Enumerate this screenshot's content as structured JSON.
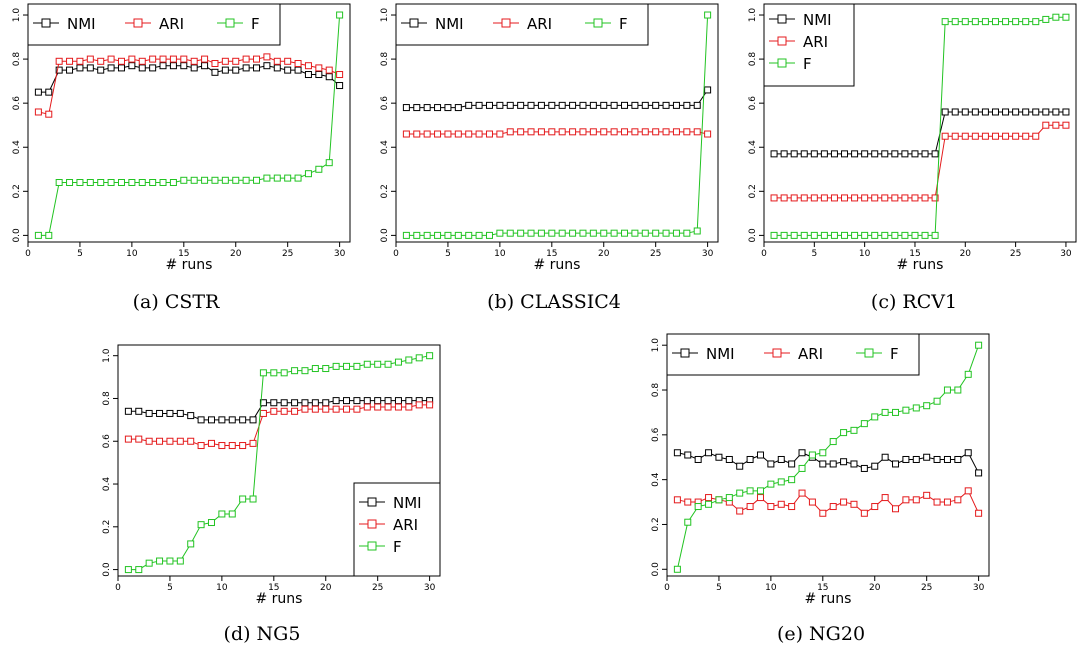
{
  "colors": {
    "NMI": "#000000",
    "ARI": "#e41a1c",
    "F": "#22c322"
  },
  "chart_data": [
    {
      "type": "line",
      "caption": "(a) CSTR",
      "xlabel": "# runs",
      "x": [
        1,
        2,
        3,
        4,
        5,
        6,
        7,
        8,
        9,
        10,
        11,
        12,
        13,
        14,
        15,
        16,
        17,
        18,
        19,
        20,
        21,
        22,
        23,
        24,
        25,
        26,
        27,
        28,
        29,
        30
      ],
      "xlim": [
        0,
        31
      ],
      "ylim": [
        -0.03,
        1.05
      ],
      "xticks": [
        0,
        5,
        10,
        15,
        20,
        25,
        30
      ],
      "yticks": [
        0.0,
        0.2,
        0.4,
        0.6,
        0.8,
        1.0
      ],
      "legend": "top-left-horizontal",
      "series": [
        {
          "name": "NMI",
          "values": [
            0.65,
            0.65,
            0.75,
            0.75,
            0.76,
            0.76,
            0.75,
            0.76,
            0.76,
            0.77,
            0.76,
            0.76,
            0.77,
            0.77,
            0.77,
            0.76,
            0.77,
            0.74,
            0.75,
            0.75,
            0.76,
            0.76,
            0.77,
            0.76,
            0.75,
            0.75,
            0.73,
            0.73,
            0.72,
            0.68
          ]
        },
        {
          "name": "ARI",
          "values": [
            0.56,
            0.55,
            0.79,
            0.79,
            0.79,
            0.8,
            0.79,
            0.8,
            0.79,
            0.8,
            0.79,
            0.8,
            0.8,
            0.8,
            0.8,
            0.79,
            0.8,
            0.78,
            0.79,
            0.79,
            0.8,
            0.8,
            0.81,
            0.79,
            0.79,
            0.78,
            0.77,
            0.76,
            0.75,
            0.73
          ]
        },
        {
          "name": "F",
          "values": [
            0.0,
            0.0,
            0.24,
            0.24,
            0.24,
            0.24,
            0.24,
            0.24,
            0.24,
            0.24,
            0.24,
            0.24,
            0.24,
            0.24,
            0.25,
            0.25,
            0.25,
            0.25,
            0.25,
            0.25,
            0.25,
            0.25,
            0.26,
            0.26,
            0.26,
            0.26,
            0.28,
            0.3,
            0.33,
            1.0
          ]
        }
      ]
    },
    {
      "type": "line",
      "caption": "(b) CLASSIC4",
      "xlabel": "# runs",
      "x": [
        1,
        2,
        3,
        4,
        5,
        6,
        7,
        8,
        9,
        10,
        11,
        12,
        13,
        14,
        15,
        16,
        17,
        18,
        19,
        20,
        21,
        22,
        23,
        24,
        25,
        26,
        27,
        28,
        29,
        30
      ],
      "xlim": [
        0,
        31
      ],
      "ylim": [
        -0.03,
        1.05
      ],
      "xticks": [
        0,
        5,
        10,
        15,
        20,
        25,
        30
      ],
      "yticks": [
        0.0,
        0.2,
        0.4,
        0.6,
        0.8,
        1.0
      ],
      "legend": "top-left-horizontal",
      "series": [
        {
          "name": "NMI",
          "values": [
            0.58,
            0.58,
            0.58,
            0.58,
            0.58,
            0.58,
            0.59,
            0.59,
            0.59,
            0.59,
            0.59,
            0.59,
            0.59,
            0.59,
            0.59,
            0.59,
            0.59,
            0.59,
            0.59,
            0.59,
            0.59,
            0.59,
            0.59,
            0.59,
            0.59,
            0.59,
            0.59,
            0.59,
            0.59,
            0.66
          ]
        },
        {
          "name": "ARI",
          "values": [
            0.46,
            0.46,
            0.46,
            0.46,
            0.46,
            0.46,
            0.46,
            0.46,
            0.46,
            0.46,
            0.47,
            0.47,
            0.47,
            0.47,
            0.47,
            0.47,
            0.47,
            0.47,
            0.47,
            0.47,
            0.47,
            0.47,
            0.47,
            0.47,
            0.47,
            0.47,
            0.47,
            0.47,
            0.47,
            0.46
          ]
        },
        {
          "name": "F",
          "values": [
            0.0,
            0.0,
            0.0,
            0.0,
            0.0,
            0.0,
            0.0,
            0.0,
            0.0,
            0.01,
            0.01,
            0.01,
            0.01,
            0.01,
            0.01,
            0.01,
            0.01,
            0.01,
            0.01,
            0.01,
            0.01,
            0.01,
            0.01,
            0.01,
            0.01,
            0.01,
            0.01,
            0.01,
            0.02,
            1.0
          ]
        }
      ]
    },
    {
      "type": "line",
      "caption": "(c) RCV1",
      "xlabel": "# runs",
      "x": [
        1,
        2,
        3,
        4,
        5,
        6,
        7,
        8,
        9,
        10,
        11,
        12,
        13,
        14,
        15,
        16,
        17,
        18,
        19,
        20,
        21,
        22,
        23,
        24,
        25,
        26,
        27,
        28,
        29,
        30
      ],
      "xlim": [
        0,
        31
      ],
      "ylim": [
        -0.03,
        1.05
      ],
      "xticks": [
        0,
        5,
        10,
        15,
        20,
        25,
        30
      ],
      "yticks": [
        0.0,
        0.2,
        0.4,
        0.6,
        0.8,
        1.0
      ],
      "legend": "top-left-vertical",
      "series": [
        {
          "name": "NMI",
          "values": [
            0.37,
            0.37,
            0.37,
            0.37,
            0.37,
            0.37,
            0.37,
            0.37,
            0.37,
            0.37,
            0.37,
            0.37,
            0.37,
            0.37,
            0.37,
            0.37,
            0.37,
            0.56,
            0.56,
            0.56,
            0.56,
            0.56,
            0.56,
            0.56,
            0.56,
            0.56,
            0.56,
            0.56,
            0.56,
            0.56
          ]
        },
        {
          "name": "ARI",
          "values": [
            0.17,
            0.17,
            0.17,
            0.17,
            0.17,
            0.17,
            0.17,
            0.17,
            0.17,
            0.17,
            0.17,
            0.17,
            0.17,
            0.17,
            0.17,
            0.17,
            0.17,
            0.45,
            0.45,
            0.45,
            0.45,
            0.45,
            0.45,
            0.45,
            0.45,
            0.45,
            0.45,
            0.5,
            0.5,
            0.5
          ]
        },
        {
          "name": "F",
          "values": [
            0.0,
            0.0,
            0.0,
            0.0,
            0.0,
            0.0,
            0.0,
            0.0,
            0.0,
            0.0,
            0.0,
            0.0,
            0.0,
            0.0,
            0.0,
            0.0,
            0.0,
            0.97,
            0.97,
            0.97,
            0.97,
            0.97,
            0.97,
            0.97,
            0.97,
            0.97,
            0.97,
            0.98,
            0.99,
            0.99
          ]
        }
      ]
    },
    {
      "type": "line",
      "caption": "(d) NG5",
      "xlabel": "# runs",
      "x": [
        1,
        2,
        3,
        4,
        5,
        6,
        7,
        8,
        9,
        10,
        11,
        12,
        13,
        14,
        15,
        16,
        17,
        18,
        19,
        20,
        21,
        22,
        23,
        24,
        25,
        26,
        27,
        28,
        29,
        30
      ],
      "xlim": [
        0,
        31
      ],
      "ylim": [
        -0.03,
        1.05
      ],
      "xticks": [
        0,
        5,
        10,
        15,
        20,
        25,
        30
      ],
      "yticks": [
        0.0,
        0.2,
        0.4,
        0.6,
        0.8,
        1.0
      ],
      "legend": "bottom-right-vertical",
      "series": [
        {
          "name": "NMI",
          "values": [
            0.74,
            0.74,
            0.73,
            0.73,
            0.73,
            0.73,
            0.72,
            0.7,
            0.7,
            0.7,
            0.7,
            0.7,
            0.7,
            0.78,
            0.78,
            0.78,
            0.78,
            0.78,
            0.78,
            0.78,
            0.79,
            0.79,
            0.79,
            0.79,
            0.79,
            0.79,
            0.79,
            0.79,
            0.79,
            0.79
          ]
        },
        {
          "name": "ARI",
          "values": [
            0.61,
            0.61,
            0.6,
            0.6,
            0.6,
            0.6,
            0.6,
            0.58,
            0.59,
            0.58,
            0.58,
            0.58,
            0.59,
            0.73,
            0.74,
            0.74,
            0.74,
            0.75,
            0.75,
            0.75,
            0.75,
            0.75,
            0.75,
            0.76,
            0.76,
            0.76,
            0.76,
            0.76,
            0.77,
            0.77
          ]
        },
        {
          "name": "F",
          "values": [
            0.0,
            0.0,
            0.03,
            0.04,
            0.04,
            0.04,
            0.12,
            0.21,
            0.22,
            0.26,
            0.26,
            0.33,
            0.33,
            0.92,
            0.92,
            0.92,
            0.93,
            0.93,
            0.94,
            0.94,
            0.95,
            0.95,
            0.95,
            0.96,
            0.96,
            0.96,
            0.97,
            0.98,
            0.99,
            1.0
          ]
        }
      ]
    },
    {
      "type": "line",
      "caption": "(e) NG20",
      "xlabel": "# runs",
      "x": [
        1,
        2,
        3,
        4,
        5,
        6,
        7,
        8,
        9,
        10,
        11,
        12,
        13,
        14,
        15,
        16,
        17,
        18,
        19,
        20,
        21,
        22,
        23,
        24,
        25,
        26,
        27,
        28,
        29,
        30
      ],
      "xlim": [
        0,
        31
      ],
      "ylim": [
        -0.03,
        1.05
      ],
      "xticks": [
        0,
        5,
        10,
        15,
        20,
        25,
        30
      ],
      "yticks": [
        0.0,
        0.2,
        0.4,
        0.6,
        0.8,
        1.0
      ],
      "legend": "top-left-horizontal",
      "series": [
        {
          "name": "NMI",
          "values": [
            0.52,
            0.51,
            0.49,
            0.52,
            0.5,
            0.49,
            0.46,
            0.49,
            0.51,
            0.47,
            0.49,
            0.47,
            0.52,
            0.5,
            0.47,
            0.47,
            0.48,
            0.47,
            0.45,
            0.46,
            0.5,
            0.47,
            0.49,
            0.49,
            0.5,
            0.49,
            0.49,
            0.49,
            0.52,
            0.43
          ]
        },
        {
          "name": "ARI",
          "values": [
            0.31,
            0.3,
            0.3,
            0.32,
            0.31,
            0.3,
            0.26,
            0.28,
            0.32,
            0.28,
            0.29,
            0.28,
            0.34,
            0.3,
            0.25,
            0.28,
            0.3,
            0.29,
            0.25,
            0.28,
            0.32,
            0.27,
            0.31,
            0.31,
            0.33,
            0.3,
            0.3,
            0.31,
            0.35,
            0.25
          ]
        },
        {
          "name": "F",
          "values": [
            0.0,
            0.21,
            0.28,
            0.29,
            0.31,
            0.32,
            0.34,
            0.35,
            0.35,
            0.38,
            0.39,
            0.4,
            0.45,
            0.51,
            0.52,
            0.57,
            0.61,
            0.62,
            0.65,
            0.68,
            0.7,
            0.7,
            0.71,
            0.72,
            0.73,
            0.75,
            0.8,
            0.8,
            0.87,
            1.0
          ]
        }
      ]
    }
  ]
}
